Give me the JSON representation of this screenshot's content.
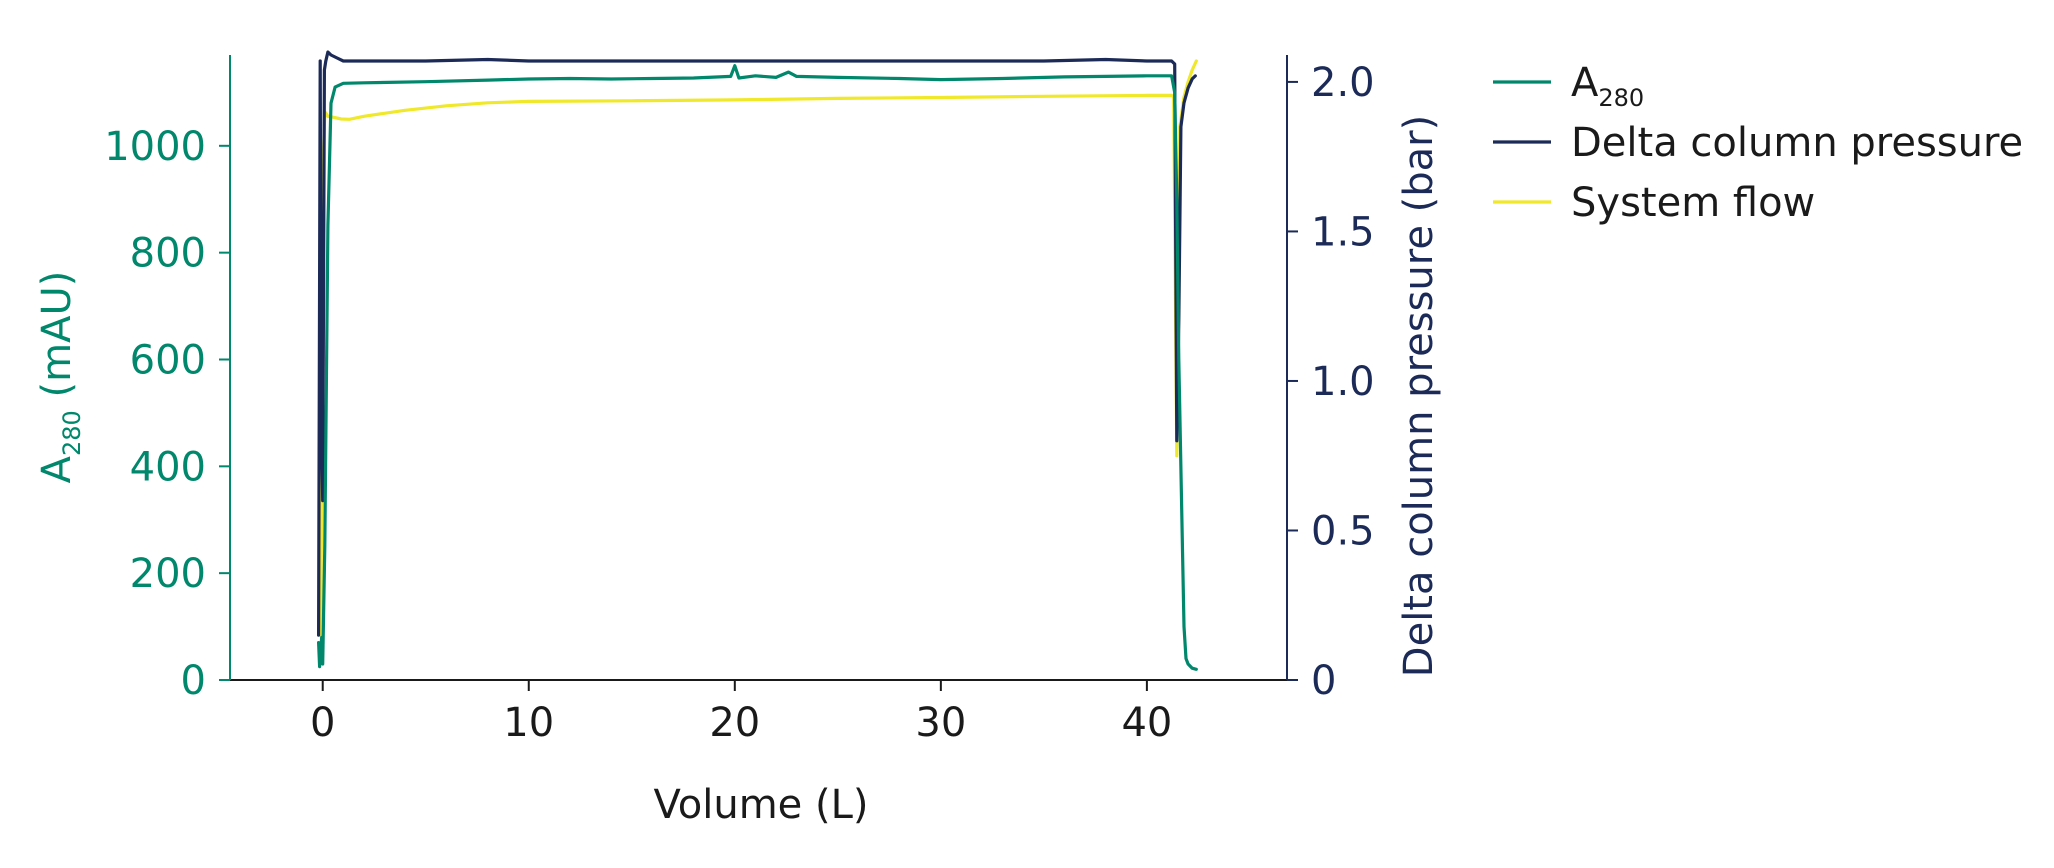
{
  "chart_data": {
    "type": "line",
    "xlabel": "Volume (L)",
    "ylabel_left": {
      "main": "A",
      "sub": "280",
      "rest": " (mAU)"
    },
    "ylabel_right": "Delta column pressure (bar)",
    "xlim": [
      -4.5,
      46.8
    ],
    "ylim_left": [
      0,
      1170
    ],
    "ylim_right": [
      0,
      2.09
    ],
    "x_ticks": [
      0,
      10,
      20,
      30,
      40
    ],
    "y_left_ticks": [
      0,
      200,
      400,
      600,
      800,
      1000
    ],
    "y_right_ticks": [
      0,
      0.5,
      1.0,
      1.5,
      2.0
    ],
    "y_right_tick_labels": [
      "0",
      "0.5",
      "1.0",
      "1.5",
      "2.0"
    ],
    "grid": false,
    "legend_position": "right",
    "colors": {
      "a280": "#00876c",
      "pressure": "#1b2a57",
      "flow": "#f0e82a",
      "axis_x": "#1a1a1a"
    },
    "legend": [
      {
        "key": "a280",
        "label_main": "A",
        "label_sub": "280"
      },
      {
        "key": "pressure",
        "label_main": "Delta column pressure"
      },
      {
        "key": "flow",
        "label_main": "System flow"
      }
    ],
    "series": [
      {
        "key": "a280",
        "axis": "left",
        "x": [
          -0.2,
          -0.15,
          -0.05,
          0.0,
          0.1,
          0.25,
          0.4,
          0.6,
          1.0,
          2,
          5,
          8,
          10,
          12,
          14,
          16,
          18,
          19.8,
          20.0,
          20.2,
          21,
          22,
          22.6,
          23,
          25,
          28,
          30,
          33,
          36,
          38,
          40,
          41.2,
          41.35,
          41.45,
          41.55,
          41.7,
          41.8,
          41.9,
          42.0,
          42.2,
          42.4
        ],
        "y": [
          70,
          25,
          80,
          30,
          250,
          850,
          1080,
          1110,
          1117,
          1118,
          1120,
          1123,
          1125,
          1126,
          1125,
          1126,
          1127,
          1130,
          1150,
          1127,
          1131,
          1128,
          1138,
          1130,
          1128,
          1126,
          1124,
          1126,
          1129,
          1130,
          1131,
          1131,
          1100,
          900,
          600,
          300,
          100,
          40,
          30,
          22,
          20
        ]
      },
      {
        "key": "pressure",
        "axis": "right",
        "x": [
          -0.2,
          -0.12,
          -0.08,
          0.0,
          0.08,
          0.15,
          0.25,
          0.4,
          0.7,
          1,
          3,
          5,
          8,
          10,
          15,
          20,
          25,
          30,
          35,
          38,
          40,
          41.2,
          41.35,
          41.45,
          41.55,
          41.65,
          41.8,
          42.0,
          42.2,
          42.35
        ],
        "y": [
          0.15,
          2.07,
          1.0,
          0.6,
          2.04,
          2.07,
          2.1,
          2.09,
          2.08,
          2.07,
          2.07,
          2.07,
          2.075,
          2.07,
          2.07,
          2.07,
          2.07,
          2.07,
          2.07,
          2.075,
          2.07,
          2.07,
          2.06,
          0.8,
          1.2,
          1.85,
          1.93,
          1.98,
          2.01,
          2.02
        ]
      },
      {
        "key": "flow",
        "axis": "right",
        "x": [
          -0.1,
          -0.05,
          0.0,
          0.05,
          0.1,
          0.25,
          0.5,
          0.9,
          1.3,
          2,
          4,
          6,
          8,
          10,
          15,
          20,
          25,
          30,
          35,
          40,
          41.2,
          41.3,
          41.45,
          41.6,
          41.8,
          42.0,
          42.2,
          42.4
        ],
        "y": [
          0.15,
          0.6,
          1.2,
          1.78,
          1.9,
          1.885,
          1.882,
          1.876,
          1.875,
          1.885,
          1.905,
          1.92,
          1.93,
          1.935,
          1.937,
          1.94,
          1.945,
          1.948,
          1.952,
          1.955,
          1.955,
          1.95,
          0.75,
          1.85,
          1.95,
          2.0,
          2.04,
          2.07
        ]
      }
    ]
  }
}
